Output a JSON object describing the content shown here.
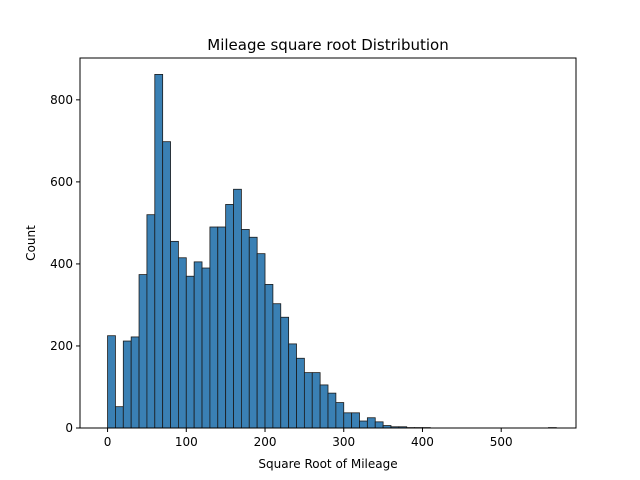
{
  "chart_data": {
    "type": "bar",
    "title": "Mileage square root Distribution",
    "xlabel": "Square Root of Mileage",
    "ylabel": "Count",
    "xlim": [
      -35,
      595
    ],
    "ylim": [
      0,
      902
    ],
    "xticks": [
      0,
      100,
      200,
      300,
      400,
      500
    ],
    "yticks": [
      0,
      200,
      400,
      600,
      800
    ],
    "grid": false,
    "bar_color": "#3a80b4",
    "bar_edge_color": "#1a1a1a",
    "bin_width": 10,
    "x": [
      0,
      10,
      20,
      30,
      40,
      50,
      60,
      70,
      80,
      90,
      100,
      110,
      120,
      130,
      140,
      150,
      160,
      170,
      180,
      190,
      200,
      210,
      220,
      230,
      240,
      250,
      260,
      270,
      280,
      290,
      300,
      310,
      320,
      330,
      340,
      350,
      360,
      370,
      380,
      390,
      400,
      410,
      420,
      430,
      440,
      450,
      460,
      470,
      480,
      490,
      500,
      510,
      520,
      530,
      540,
      550,
      560
    ],
    "values": [
      225,
      52,
      212,
      222,
      374,
      520,
      862,
      698,
      455,
      415,
      370,
      405,
      390,
      490,
      490,
      545,
      582,
      484,
      465,
      425,
      350,
      303,
      270,
      205,
      170,
      135,
      135,
      105,
      85,
      62,
      37,
      37,
      17,
      25,
      15,
      6,
      3,
      3,
      1,
      1,
      1,
      0,
      0,
      0,
      0,
      0,
      0,
      0,
      0,
      0,
      0,
      0,
      0,
      0,
      0,
      0,
      1
    ]
  }
}
